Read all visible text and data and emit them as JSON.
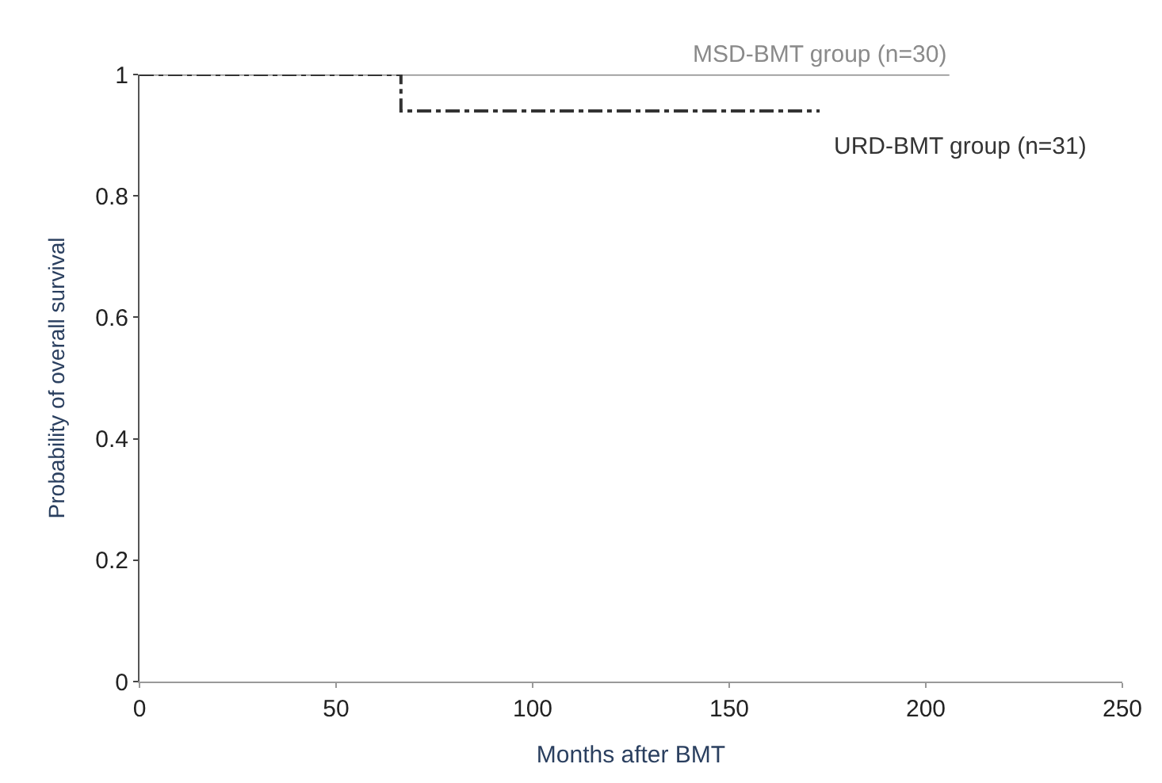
{
  "chart_data": {
    "type": "step",
    "xlabel": "Months after BMT",
    "ylabel": "Probability of overall survival",
    "xlim": [
      0,
      250
    ],
    "xticks": [
      0,
      50,
      100,
      150,
      200,
      250
    ],
    "ylim": [
      0,
      1
    ],
    "yticks": [
      0,
      0.2,
      0.4,
      0.6,
      0.8,
      1
    ],
    "legend": false,
    "marker": "none",
    "series": [
      {
        "name": "MSD-BMT group (n=30)",
        "color": "#8a8a8a",
        "line_style": "solid",
        "x": [
          0,
          206
        ],
        "values": [
          1,
          1
        ]
      },
      {
        "name": "URD-BMT group (n=31)",
        "color": "#333333",
        "line_style": "dashed",
        "x": [
          0,
          66.5,
          173
        ],
        "values": [
          1,
          0.94,
          0.94
        ]
      }
    ]
  }
}
